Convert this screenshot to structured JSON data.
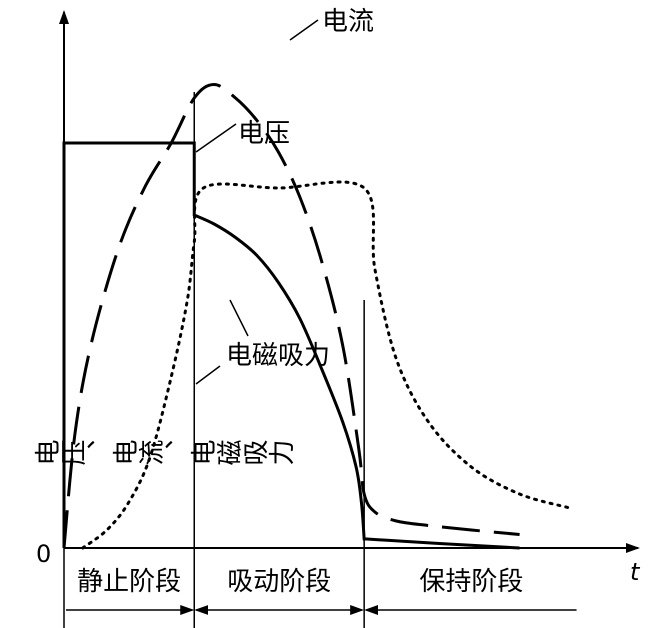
{
  "chart_data": {
    "type": "line",
    "title": "",
    "xlabel": "t",
    "ylabel": "电压、电流、电磁吸力",
    "origin_label": "0",
    "xlim": [
      0,
      1.0
    ],
    "ylim": [
      0,
      1.0
    ],
    "series": [
      {
        "name": "电压",
        "style": "solid",
        "x": [
          0.0,
          0.0,
          0.243,
          0.243,
          0.28,
          0.32,
          0.36,
          0.4,
          0.44,
          0.48,
          0.52,
          0.545,
          0.555,
          0.56,
          0.565,
          0.7,
          0.85
        ],
        "y": [
          0.0,
          0.9,
          0.9,
          0.74,
          0.72,
          0.69,
          0.65,
          0.59,
          0.51,
          0.4,
          0.28,
          0.18,
          0.1,
          0.02,
          0.02,
          0.01,
          0.0
        ]
      },
      {
        "name": "电流",
        "style": "dashed",
        "x": [
          0.0,
          0.02,
          0.05,
          0.1,
          0.15,
          0.2,
          0.243,
          0.28,
          0.32,
          0.36,
          0.4,
          0.44,
          0.48,
          0.52,
          0.55,
          0.56,
          0.58,
          0.62,
          0.68,
          0.76,
          0.85
        ],
        "y": [
          0.0,
          0.25,
          0.45,
          0.66,
          0.8,
          0.9,
          1.0,
          1.03,
          1.0,
          0.95,
          0.88,
          0.78,
          0.64,
          0.45,
          0.22,
          0.12,
          0.08,
          0.06,
          0.05,
          0.04,
          0.03
        ]
      },
      {
        "name": "电磁吸力",
        "style": "dotted",
        "x": [
          0.035,
          0.08,
          0.12,
          0.16,
          0.2,
          0.23,
          0.243,
          0.26,
          0.4,
          0.56,
          0.58,
          0.62,
          0.68,
          0.76,
          0.85,
          0.94
        ],
        "y": [
          0.0,
          0.04,
          0.1,
          0.2,
          0.38,
          0.55,
          0.68,
          0.8,
          0.8,
          0.8,
          0.62,
          0.42,
          0.28,
          0.18,
          0.12,
          0.09
        ]
      }
    ],
    "phase_boundaries": [
      0.0,
      0.243,
      0.56,
      0.96
    ],
    "phases": [
      "静止阶段",
      "吸动阶段",
      "保持阶段"
    ]
  }
}
